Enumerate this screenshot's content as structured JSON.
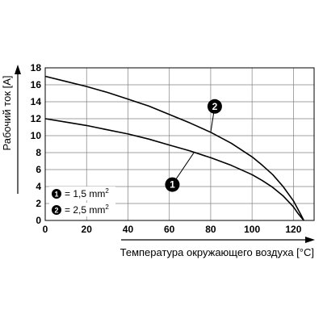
{
  "chart_data": {
    "type": "line",
    "xlabel": "Температура окружающего воздуха [°C]",
    "ylabel": "Рабочий ток [A]",
    "xlim": [
      0,
      130
    ],
    "ylim": [
      0,
      18
    ],
    "xticks": [
      0,
      20,
      40,
      60,
      80,
      100,
      120
    ],
    "yticks": [
      0,
      2,
      4,
      6,
      8,
      10,
      12,
      14,
      16,
      18
    ],
    "grid": true,
    "legend_position": "bottom-left",
    "line_color": "#000000",
    "grid_color": "#808080",
    "series": [
      {
        "marker": "1",
        "x": [
          0,
          10,
          20,
          30,
          40,
          50,
          60,
          70,
          80,
          90,
          100,
          105,
          110,
          115,
          120,
          122,
          124,
          125
        ],
        "y": [
          12.0,
          11.6,
          11.2,
          10.7,
          10.2,
          9.6,
          8.9,
          8.2,
          7.4,
          6.5,
          5.4,
          4.7,
          3.9,
          2.9,
          1.6,
          0.9,
          0.3,
          0.0
        ]
      },
      {
        "marker": "2",
        "x": [
          0,
          10,
          20,
          30,
          40,
          50,
          60,
          70,
          80,
          90,
          100,
          105,
          110,
          115,
          120,
          122,
          124,
          125
        ],
        "y": [
          17.0,
          16.4,
          15.8,
          15.1,
          14.3,
          13.5,
          12.5,
          11.5,
          10.4,
          9.1,
          7.5,
          6.5,
          5.4,
          4.0,
          2.3,
          1.4,
          0.5,
          0.0
        ]
      }
    ],
    "legend": [
      {
        "marker": "1",
        "label": "= 1,5 mm",
        "sup": "2"
      },
      {
        "marker": "2",
        "label": "= 2,5 mm",
        "sup": "2"
      }
    ],
    "callouts": [
      {
        "marker": "1",
        "series_index": 0,
        "at_x": 72
      },
      {
        "marker": "2",
        "series_index": 1,
        "at_x": 80
      }
    ]
  }
}
